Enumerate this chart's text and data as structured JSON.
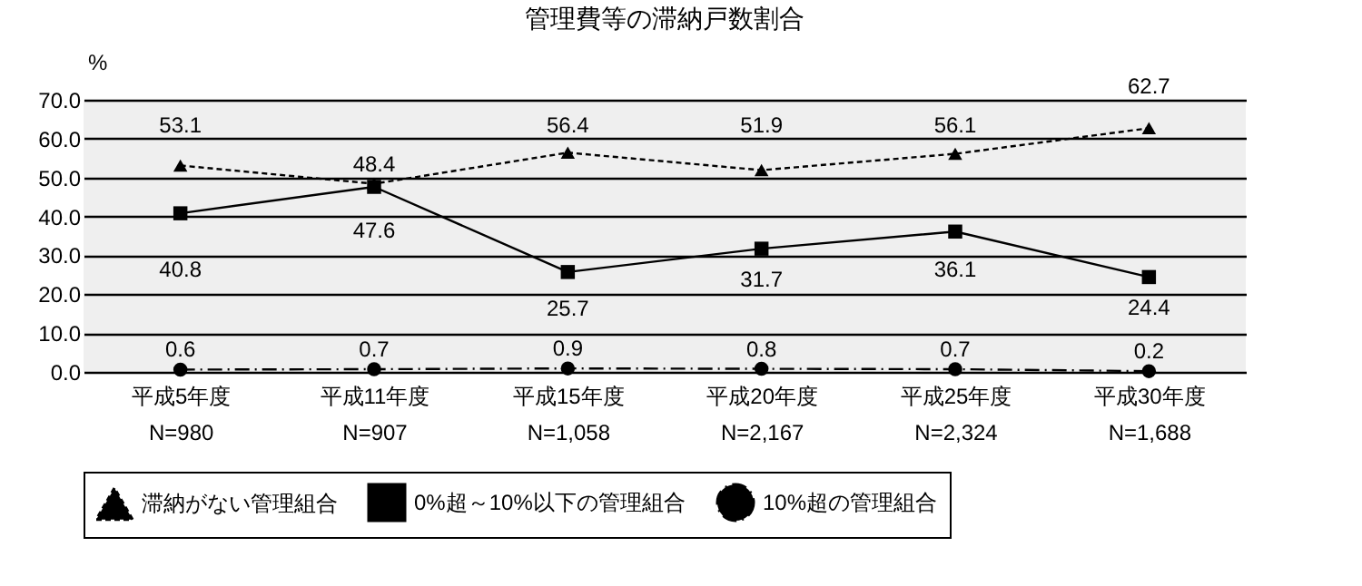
{
  "chart_data": {
    "type": "line",
    "title": "管理費等の滞納戸数割合",
    "ylabel": "%",
    "categories": [
      "平成5年度\nN=980",
      "平成11年度\nN=907",
      "平成15年度\nN=1,058",
      "平成20年度\nN=2,167",
      "平成25年度\nN=2,324",
      "平成30年度\nN=1,688"
    ],
    "series": [
      {
        "name": "滞納がない管理組合",
        "color": "#000000",
        "marker": "triangle",
        "line_style": "dashed",
        "values": [
          53.1,
          48.4,
          56.4,
          51.9,
          56.1,
          62.7
        ]
      },
      {
        "name": "0%超～10%以下の管理組合",
        "color": "#000000",
        "marker": "square",
        "line_style": "solid",
        "values": [
          40.8,
          47.6,
          25.7,
          31.7,
          36.1,
          24.4
        ]
      },
      {
        "name": "10%超の管理組合",
        "color": "#000000",
        "marker": "circle",
        "line_style": "dashdot",
        "values": [
          0.6,
          0.7,
          0.9,
          0.8,
          0.7,
          0.2
        ]
      }
    ],
    "ylim": [
      0,
      70
    ],
    "yticks": [
      {
        "value": 0,
        "label": "0.0"
      },
      {
        "value": 10,
        "label": "10.0"
      },
      {
        "value": 20,
        "label": "20.0"
      },
      {
        "value": 30,
        "label": "30.0"
      },
      {
        "value": 40,
        "label": "40.0"
      },
      {
        "value": 50,
        "label": "50.0"
      },
      {
        "value": 60,
        "label": "60.0"
      },
      {
        "value": 70,
        "label": "70.0"
      }
    ],
    "grid": "y",
    "legend": "bottom",
    "data_labels": true
  }
}
